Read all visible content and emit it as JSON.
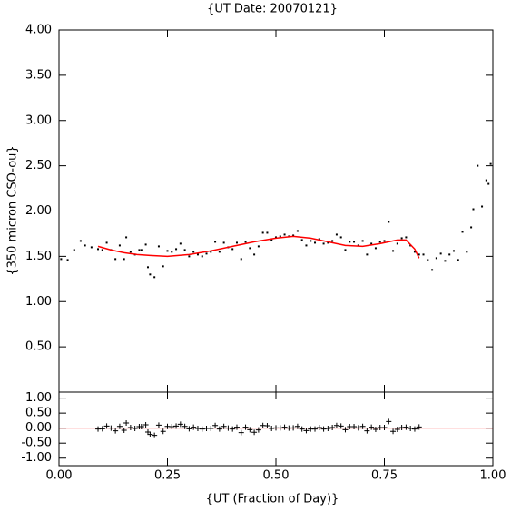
{
  "chart_data": [
    {
      "type": "scatter",
      "title": "{UT Date: 20070121}",
      "y_label": "{350 micron CSO-ou}",
      "xlim": [
        0,
        1
      ],
      "ylim": [
        0,
        4
      ],
      "yticks": [
        {
          "value": 0.5,
          "label": "0.50"
        },
        {
          "value": 1,
          "label": "1.00"
        },
        {
          "value": 1.5,
          "label": "1.50"
        },
        {
          "value": 2,
          "label": "2.00"
        },
        {
          "value": 2.5,
          "label": "2.50"
        },
        {
          "value": 3,
          "label": "3.00"
        },
        {
          "value": 3.5,
          "label": "3.50"
        },
        {
          "value": 4,
          "label": "4.00"
        }
      ],
      "series": [
        {
          "style": "points",
          "color": "#000000",
          "x": [
            0.005,
            0.02,
            0.035,
            0.05,
            0.06,
            0.075,
            0.09,
            0.1,
            0.11,
            0.12,
            0.13,
            0.14,
            0.15,
            0.155,
            0.165,
            0.175,
            0.185,
            0.19,
            0.2,
            0.205,
            0.21,
            0.22,
            0.23,
            0.24,
            0.25,
            0.26,
            0.27,
            0.28,
            0.29,
            0.3,
            0.31,
            0.32,
            0.33,
            0.34,
            0.35,
            0.36,
            0.37,
            0.38,
            0.39,
            0.4,
            0.41,
            0.42,
            0.43,
            0.44,
            0.45,
            0.46,
            0.47,
            0.48,
            0.49,
            0.5,
            0.51,
            0.52,
            0.53,
            0.54,
            0.55,
            0.56,
            0.57,
            0.58,
            0.59,
            0.6,
            0.61,
            0.62,
            0.63,
            0.64,
            0.65,
            0.66,
            0.67,
            0.68,
            0.69,
            0.7,
            0.71,
            0.72,
            0.73,
            0.74,
            0.75,
            0.76,
            0.77,
            0.78,
            0.79,
            0.8,
            0.81,
            0.82,
            0.83,
            0.84,
            0.85,
            0.86,
            0.87,
            0.88,
            0.89,
            0.9,
            0.91,
            0.92,
            0.93,
            0.94,
            0.95,
            0.955,
            0.965,
            0.975,
            0.985,
            0.99,
            0.995
          ],
          "values": [
            1.47,
            1.46,
            1.57,
            1.67,
            1.62,
            1.6,
            1.58,
            1.57,
            1.65,
            1.57,
            1.47,
            1.62,
            1.47,
            1.71,
            1.55,
            1.52,
            1.57,
            1.57,
            1.63,
            1.38,
            1.3,
            1.27,
            1.61,
            1.39,
            1.56,
            1.55,
            1.58,
            1.64,
            1.57,
            1.5,
            1.55,
            1.52,
            1.5,
            1.53,
            1.55,
            1.66,
            1.55,
            1.65,
            1.6,
            1.58,
            1.65,
            1.47,
            1.66,
            1.59,
            1.52,
            1.61,
            1.76,
            1.76,
            1.68,
            1.71,
            1.72,
            1.74,
            1.72,
            1.73,
            1.78,
            1.68,
            1.62,
            1.67,
            1.65,
            1.69,
            1.64,
            1.65,
            1.67,
            1.74,
            1.71,
            1.57,
            1.66,
            1.66,
            1.62,
            1.67,
            1.52,
            1.64,
            1.59,
            1.66,
            1.67,
            1.88,
            1.56,
            1.64,
            1.7,
            1.71,
            1.62,
            1.55,
            1.52,
            1.52,
            1.46,
            1.35,
            1.48,
            1.53,
            1.45,
            1.52,
            1.56,
            1.46,
            1.77,
            1.55,
            1.82,
            2.02,
            2.5,
            2.05,
            2.34,
            2.3,
            2.52
          ]
        },
        {
          "style": "line",
          "color": "#ff0000",
          "x": [
            0.09,
            0.12,
            0.15,
            0.18,
            0.21,
            0.25,
            0.3,
            0.35,
            0.4,
            0.45,
            0.5,
            0.54,
            0.58,
            0.62,
            0.66,
            0.7,
            0.74,
            0.78,
            0.8,
            0.82,
            0.83
          ],
          "values": [
            1.61,
            1.57,
            1.54,
            1.52,
            1.51,
            1.5,
            1.52,
            1.56,
            1.61,
            1.66,
            1.7,
            1.72,
            1.7,
            1.66,
            1.62,
            1.61,
            1.64,
            1.68,
            1.68,
            1.58,
            1.48
          ]
        }
      ]
    },
    {
      "type": "scatter",
      "x_label": "{UT (Fraction of Day)}",
      "xlim": [
        0,
        1
      ],
      "ylim": [
        -1.25,
        1.2
      ],
      "xticks": [
        {
          "value": 0,
          "label": "0.00"
        },
        {
          "value": 0.25,
          "label": "0.25"
        },
        {
          "value": 0.5,
          "label": "0.50"
        },
        {
          "value": 0.75,
          "label": "0.75"
        },
        {
          "value": 1,
          "label": "1.00"
        }
      ],
      "yticks": [
        {
          "value": -1,
          "label": "-1.00"
        },
        {
          "value": -0.5,
          "label": "-0.50"
        },
        {
          "value": 0,
          "label": "0.00"
        },
        {
          "value": 0.5,
          "label": "0.50"
        },
        {
          "value": 1,
          "label": "1.00"
        }
      ],
      "reference_line": {
        "y": 0,
        "color": "#ff0000"
      },
      "series": [
        {
          "style": "plus",
          "color": "#000000",
          "x": [
            0.09,
            0.1,
            0.11,
            0.12,
            0.13,
            0.14,
            0.15,
            0.155,
            0.165,
            0.175,
            0.185,
            0.19,
            0.2,
            0.205,
            0.21,
            0.22,
            0.23,
            0.24,
            0.25,
            0.26,
            0.27,
            0.28,
            0.29,
            0.3,
            0.31,
            0.32,
            0.33,
            0.34,
            0.35,
            0.36,
            0.37,
            0.38,
            0.39,
            0.4,
            0.41,
            0.42,
            0.43,
            0.44,
            0.45,
            0.46,
            0.47,
            0.48,
            0.49,
            0.5,
            0.51,
            0.52,
            0.53,
            0.54,
            0.55,
            0.56,
            0.57,
            0.58,
            0.59,
            0.6,
            0.61,
            0.62,
            0.63,
            0.64,
            0.65,
            0.66,
            0.67,
            0.68,
            0.69,
            0.7,
            0.71,
            0.72,
            0.73,
            0.74,
            0.75,
            0.76,
            0.77,
            0.78,
            0.79,
            0.8,
            0.81,
            0.82,
            0.83
          ],
          "values": [
            -0.03,
            -0.02,
            0.07,
            0,
            -0.09,
            0.06,
            -0.07,
            0.17,
            0.02,
            -0.01,
            0.05,
            0.05,
            0.11,
            -0.13,
            -0.21,
            -0.24,
            0.1,
            -0.11,
            0.06,
            0.05,
            0.07,
            0.13,
            0.06,
            -0.02,
            0.03,
            -0.01,
            -0.03,
            -0.01,
            -0.01,
            0.09,
            -0.03,
            0.06,
            0,
            -0.03,
            0.03,
            -0.15,
            0.03,
            -0.05,
            -0.14,
            -0.06,
            0.09,
            0.08,
            -0.01,
            0.01,
            0.01,
            0.03,
            0,
            0.01,
            0.06,
            -0.03,
            -0.08,
            -0.03,
            -0.03,
            0.02,
            -0.03,
            -0.01,
            0.02,
            0.09,
            0.07,
            -0.05,
            0.05,
            0.05,
            0.01,
            0.06,
            -0.09,
            0.03,
            -0.04,
            0.02,
            0.02,
            0.22,
            -0.11,
            -0.04,
            0.02,
            0.03,
            -0.01,
            -0.03,
            0.04
          ]
        }
      ]
    }
  ]
}
